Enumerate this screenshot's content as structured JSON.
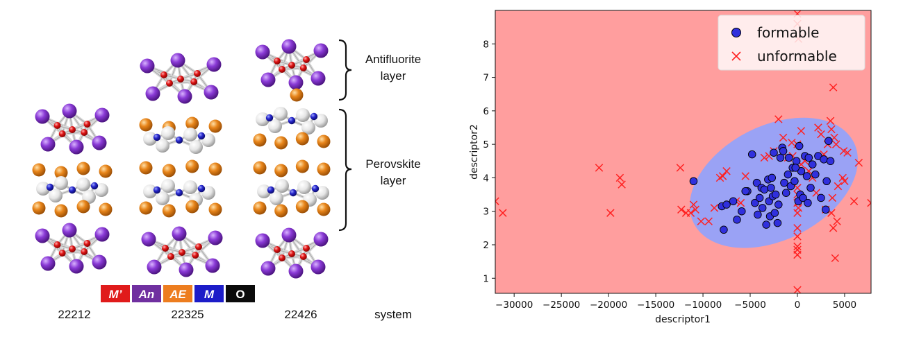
{
  "left_panel": {
    "layer_labels": [
      {
        "line1": "Antifluorite",
        "line2": "layer"
      },
      {
        "line1": "Perovskite",
        "line2": "layer"
      }
    ],
    "legend_keys": [
      {
        "label": "M’",
        "color": "#e01b1b",
        "italic": true
      },
      {
        "label": "An",
        "color": "#7030a0",
        "italic": true
      },
      {
        "label": "AE",
        "color": "#ed7d1f",
        "italic": true
      },
      {
        "label": "M",
        "color": "#1c1cc8",
        "italic": true
      },
      {
        "label": "O",
        "color": "#0b0b0b",
        "italic": false
      }
    ],
    "systems": [
      "22212",
      "22325",
      "22426"
    ],
    "system_label": "system",
    "atom_colors": {
      "An": "#7b2fbe",
      "AE": "#e07f14",
      "M": "#2020c0",
      "O": "#e01515",
      "O_white": "#e8e8e8"
    }
  },
  "chart_data": {
    "type": "scatter",
    "title": "",
    "xlabel": "descriptor1",
    "ylabel": "descriptor2",
    "xlim": [
      -32000,
      7800
    ],
    "ylim": [
      0.55,
      9.0
    ],
    "xticks": [
      -30000,
      -25000,
      -20000,
      -15000,
      -10000,
      -5000,
      0,
      5000
    ],
    "xtick_labels": [
      "−30000",
      "−25000",
      "−20000",
      "−15000",
      "−10000",
      "−5000",
      "0",
      "5000"
    ],
    "yticks": [
      1,
      2,
      3,
      4,
      5,
      6,
      7,
      8
    ],
    "grid": false,
    "legend_position": "top-right",
    "background_color": "#ff9e9e",
    "region": {
      "shape": "ellipse",
      "center": [
        -2500,
        3.85
      ],
      "semi_axes_data": [
        10000,
        2.75
      ],
      "rotation_deg": -27,
      "color": "#9aa2f5"
    },
    "series": [
      {
        "name": "formable",
        "marker": "circle",
        "color": "#3030dd",
        "points": [
          [
            -11000,
            3.9
          ],
          [
            -7800,
            2.45
          ],
          [
            -8000,
            3.15
          ],
          [
            -7500,
            3.2
          ],
          [
            -6800,
            3.3
          ],
          [
            -6400,
            2.75
          ],
          [
            -5900,
            3.0
          ],
          [
            -5300,
            3.6
          ],
          [
            -4800,
            4.7
          ],
          [
            -4500,
            3.25
          ],
          [
            -4300,
            3.85
          ],
          [
            -4200,
            2.9
          ],
          [
            -4000,
            3.4
          ],
          [
            -3800,
            3.7
          ],
          [
            -3700,
            3.1
          ],
          [
            -3500,
            3.65
          ],
          [
            -3300,
            2.6
          ],
          [
            -3100,
            3.95
          ],
          [
            -3000,
            3.3
          ],
          [
            -2900,
            2.85
          ],
          [
            -2800,
            3.7
          ],
          [
            -2700,
            4.0
          ],
          [
            -2600,
            3.45
          ],
          [
            -2500,
            4.75
          ],
          [
            -2400,
            2.95
          ],
          [
            -2300,
            3.5
          ],
          [
            -2100,
            2.65
          ],
          [
            -2000,
            3.2
          ],
          [
            -1800,
            4.6
          ],
          [
            -1600,
            4.9
          ],
          [
            -1400,
            3.85
          ],
          [
            -1200,
            3.55
          ],
          [
            -1000,
            4.1
          ],
          [
            -900,
            4.6
          ],
          [
            -700,
            3.75
          ],
          [
            -500,
            4.3
          ],
          [
            -300,
            3.9
          ],
          [
            -100,
            4.5
          ],
          [
            100,
            3.3
          ],
          [
            200,
            4.95
          ],
          [
            300,
            3.5
          ],
          [
            400,
            4.2
          ],
          [
            600,
            3.4
          ],
          [
            800,
            4.65
          ],
          [
            1000,
            4.05
          ],
          [
            1200,
            4.6
          ],
          [
            1400,
            3.7
          ],
          [
            1600,
            4.4
          ],
          [
            1900,
            4.1
          ],
          [
            2200,
            4.65
          ],
          [
            2500,
            3.4
          ],
          [
            2800,
            4.55
          ],
          [
            3000,
            3.05
          ],
          [
            3100,
            3.9
          ],
          [
            3300,
            5.1
          ],
          [
            3500,
            4.5
          ],
          [
            -5500,
            3.6
          ],
          [
            -200,
            4.3
          ],
          [
            1100,
            3.25
          ],
          [
            -1500,
            4.8
          ]
        ]
      },
      {
        "name": "unformable",
        "marker": "x",
        "color": "#ff2020",
        "points": [
          [
            -32000,
            3.3
          ],
          [
            -31200,
            2.95
          ],
          [
            -21000,
            4.3
          ],
          [
            -19800,
            2.95
          ],
          [
            -18800,
            4.0
          ],
          [
            -18600,
            3.8
          ],
          [
            -12400,
            4.3
          ],
          [
            -12300,
            3.05
          ],
          [
            -11800,
            2.95
          ],
          [
            -11300,
            2.95
          ],
          [
            -11000,
            3.2
          ],
          [
            -10800,
            3.05
          ],
          [
            -10200,
            2.7
          ],
          [
            -9400,
            2.7
          ],
          [
            -8800,
            3.1
          ],
          [
            -8200,
            4.0
          ],
          [
            -7900,
            4.05
          ],
          [
            -7500,
            4.2
          ],
          [
            -6500,
            3.3
          ],
          [
            -6000,
            3.25
          ],
          [
            -5500,
            4.05
          ],
          [
            -3500,
            4.6
          ],
          [
            -3000,
            4.65
          ],
          [
            -2500,
            4.8
          ],
          [
            -2000,
            5.75
          ],
          [
            -1500,
            5.2
          ],
          [
            -1000,
            4.6
          ],
          [
            -500,
            4.65
          ],
          [
            0,
            8.9
          ],
          [
            0,
            8.6
          ],
          [
            100,
            8.15
          ],
          [
            0,
            5.0
          ],
          [
            0,
            3.7
          ],
          [
            0,
            3.5
          ],
          [
            0,
            3.25
          ],
          [
            100,
            3.1
          ],
          [
            0,
            2.95
          ],
          [
            0,
            2.5
          ],
          [
            0,
            2.25
          ],
          [
            0,
            1.95
          ],
          [
            0,
            1.85
          ],
          [
            0,
            1.7
          ],
          [
            0,
            0.65
          ],
          [
            400,
            4.4
          ],
          [
            800,
            4.5
          ],
          [
            1200,
            4.2
          ],
          [
            1600,
            4.0
          ],
          [
            2000,
            3.55
          ],
          [
            2200,
            5.5
          ],
          [
            2500,
            5.3
          ],
          [
            2800,
            4.7
          ],
          [
            3000,
            3.05
          ],
          [
            3200,
            5.0
          ],
          [
            3500,
            5.7
          ],
          [
            3600,
            5.45
          ],
          [
            3700,
            3.4
          ],
          [
            3800,
            6.7
          ],
          [
            3900,
            5.2
          ],
          [
            4000,
            1.6
          ],
          [
            4100,
            5.0
          ],
          [
            4200,
            2.7
          ],
          [
            4300,
            3.75
          ],
          [
            4800,
            4.0
          ],
          [
            4900,
            4.8
          ],
          [
            5000,
            3.9
          ],
          [
            5300,
            4.75
          ],
          [
            6000,
            3.3
          ],
          [
            6500,
            4.45
          ],
          [
            7800,
            3.25
          ],
          [
            3600,
            2.95
          ],
          [
            3800,
            2.5
          ],
          [
            -600,
            5.05
          ],
          [
            400,
            5.4
          ]
        ]
      }
    ]
  }
}
